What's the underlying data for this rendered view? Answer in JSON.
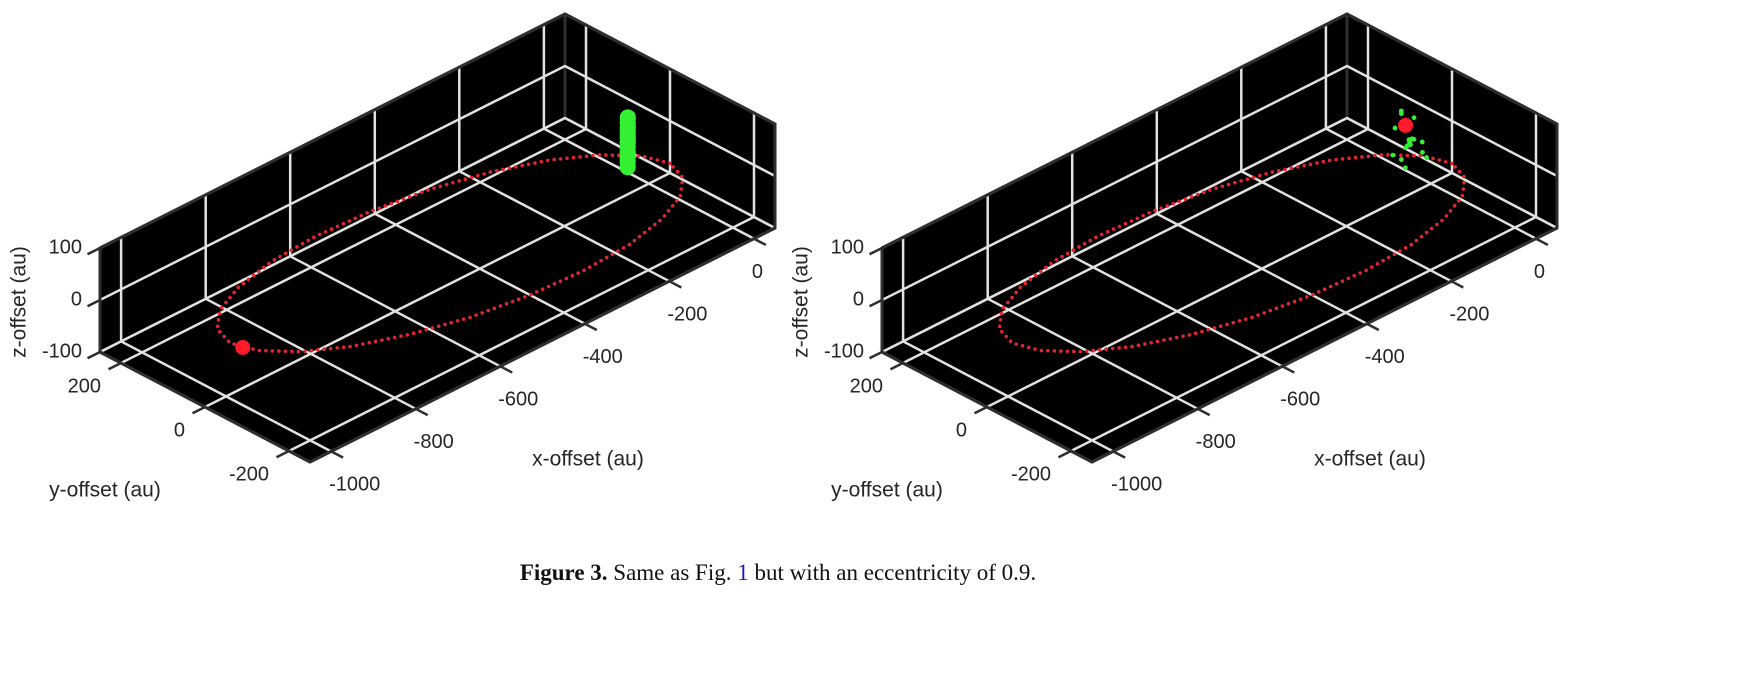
{
  "chart_data": [
    {
      "type": "scatter3d",
      "xlabel": "x-offset (au)",
      "ylabel": "y-offset (au)",
      "zlabel": "z-offset (au)",
      "xlim": [
        -1050,
        50
      ],
      "ylim": [
        -250,
        250
      ],
      "zlim": [
        -100,
        100
      ],
      "xticks": [
        -1000,
        -800,
        -600,
        -400,
        -200,
        0
      ],
      "yticks": [
        -200,
        0,
        200
      ],
      "zticks": [
        -100,
        0,
        100
      ],
      "grid": true,
      "series": [
        {
          "mode": "line",
          "color": "#e3262e",
          "x": [
            0,
            -18,
            -70,
            -152,
            -260,
            -385,
            -520,
            -655,
            -780,
            -888,
            -970,
            -1022,
            -1040,
            -1022,
            -970,
            -888,
            -780,
            -655,
            -520,
            -385,
            -260,
            -152,
            -70,
            -18
          ],
          "y": [
            -50,
            -1,
            45,
            84,
            115,
            134,
            140,
            134,
            115,
            84,
            45,
            -1,
            -50,
            -99,
            -145,
            -184,
            -215,
            -234,
            -240,
            -234,
            -215,
            -184,
            -145,
            -99
          ],
          "z": [
            -40,
            -39,
            -35,
            -28,
            -20,
            -10,
            0,
            10,
            20,
            28,
            35,
            39,
            40,
            39,
            35,
            28,
            20,
            10,
            0,
            -10,
            -20,
            -28,
            -35,
            -39
          ]
        },
        {
          "mode": "scatter",
          "color": "#33f033",
          "x": [
            -62,
            -50,
            -38,
            -86,
            -74,
            -62,
            -50,
            -38,
            -26,
            -14,
            -86,
            -74,
            -62,
            -50,
            -38,
            -26,
            -14,
            -86,
            -74,
            -62,
            -50,
            -38,
            -26,
            -14,
            -62,
            -50,
            -38
          ],
          "y": [
            -12,
            0,
            12,
            -36,
            -24,
            -12,
            0,
            12,
            24,
            36,
            -36,
            -24,
            -12,
            0,
            12,
            24,
            36,
            -36,
            -24,
            -12,
            0,
            12,
            24,
            36,
            -12,
            0,
            12
          ],
          "z": [
            -36,
            -36,
            -36,
            -18,
            -18,
            -18,
            -18,
            -18,
            -18,
            -18,
            0,
            0,
            0,
            0,
            0,
            0,
            0,
            18,
            18,
            18,
            18,
            18,
            18,
            18,
            36,
            36,
            36
          ]
        },
        {
          "mode": "point",
          "color": "#ff1a2a",
          "x": [
            -1035
          ],
          "y": [
            -75
          ],
          "z": [
            40
          ]
        }
      ]
    },
    {
      "type": "scatter3d",
      "xlabel": "x-offset (au)",
      "ylabel": "y-offset (au)",
      "zlabel": "z-offset (au)",
      "xlim": [
        -1050,
        50
      ],
      "ylim": [
        -250,
        250
      ],
      "zlim": [
        -100,
        100
      ],
      "xticks": [
        -1000,
        -800,
        -600,
        -400,
        -200,
        0
      ],
      "yticks": [
        -200,
        0,
        200
      ],
      "zticks": [
        -100,
        0,
        100
      ],
      "grid": true,
      "series": [
        {
          "mode": "line",
          "color": "#e3262e",
          "x": [
            0,
            -18,
            -70,
            -152,
            -260,
            -385,
            -520,
            -655,
            -780,
            -888,
            -970,
            -1022,
            -1040,
            -1022,
            -970,
            -888,
            -780,
            -655,
            -520,
            -385,
            -260,
            -152,
            -70,
            -18
          ],
          "y": [
            -50,
            -1,
            45,
            84,
            115,
            134,
            140,
            134,
            115,
            84,
            45,
            -1,
            -50,
            -99,
            -145,
            -184,
            -215,
            -234,
            -240,
            -234,
            -215,
            -184,
            -145,
            -99
          ],
          "z": [
            -40,
            -39,
            -35,
            -28,
            -20,
            -10,
            0,
            10,
            20,
            28,
            35,
            39,
            40,
            39,
            35,
            28,
            20,
            10,
            0,
            -10,
            -20,
            -28,
            -35,
            -39
          ]
        },
        {
          "mode": "scatter",
          "color": "#33f033",
          "x": [
            -50,
            -56,
            -44,
            -50,
            -50,
            -58,
            -42,
            -54,
            -46,
            -80,
            -20,
            -30,
            -90,
            -60,
            -10,
            -70,
            -40,
            -100,
            0,
            -65,
            -35
          ],
          "y": [
            0,
            -6,
            6,
            0,
            0,
            -10,
            10,
            2,
            -2,
            -20,
            20,
            40,
            -30,
            10,
            10,
            -50,
            30,
            -10,
            40,
            20,
            -25
          ],
          "z": [
            0,
            0,
            0,
            5,
            -5,
            3,
            -3,
            -6,
            6,
            10,
            -15,
            30,
            -20,
            60,
            -40,
            30,
            -50,
            0,
            10,
            25,
            -25
          ]
        },
        {
          "mode": "point",
          "color": "#ff1a2a",
          "x": [
            -40
          ],
          "y": [
            20
          ],
          "z": [
            20
          ]
        }
      ]
    }
  ],
  "caption": {
    "label": "Figure 3.",
    "before": "Same as Fig.",
    "ref": "1",
    "after": "but with an eccentricity of 0.9."
  }
}
